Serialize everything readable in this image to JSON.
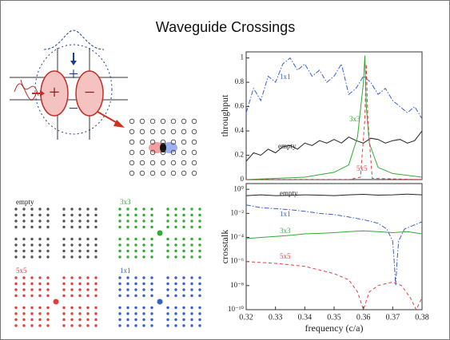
{
  "title": "Waveguide Crossings",
  "diagram": {
    "signs": [
      "+",
      "−",
      "+",
      "−"
    ],
    "lattices": [
      "empty",
      "3x3",
      "5x5",
      "1x1"
    ]
  },
  "chart_data": [
    {
      "type": "line",
      "ylabel": "throughput",
      "xlim": [
        0.32,
        0.38
      ],
      "ylim": [
        0,
        1.05
      ],
      "yticks": [
        0,
        0.2,
        0.4,
        0.6,
        0.8,
        1
      ],
      "log_y": false,
      "series": [
        {
          "name": "1x1",
          "color": "#3a5fcd",
          "dash": "dashdot",
          "x": [
            0.32,
            0.3225,
            0.325,
            0.3275,
            0.33,
            0.3325,
            0.335,
            0.3375,
            0.34,
            0.3425,
            0.345,
            0.3475,
            0.35,
            0.3525,
            0.355,
            0.3575,
            0.36,
            0.3625,
            0.365,
            0.3675,
            0.37,
            0.3725,
            0.375,
            0.3775,
            0.38
          ],
          "values": [
            0.55,
            0.75,
            0.65,
            0.85,
            0.8,
            0.95,
            1.0,
            0.9,
            0.95,
            0.85,
            0.9,
            0.8,
            0.85,
            0.95,
            0.7,
            0.75,
            0.85,
            0.8,
            0.7,
            0.75,
            0.65,
            0.6,
            0.55,
            0.6,
            0.5
          ]
        },
        {
          "name": "empty",
          "color": "#222222",
          "dash": "solid",
          "x": [
            0.32,
            0.3225,
            0.325,
            0.3275,
            0.33,
            0.3325,
            0.335,
            0.3375,
            0.34,
            0.3425,
            0.345,
            0.3475,
            0.35,
            0.3525,
            0.355,
            0.3575,
            0.36,
            0.3625,
            0.365,
            0.3675,
            0.37,
            0.3725,
            0.375,
            0.3775,
            0.38
          ],
          "values": [
            0.15,
            0.22,
            0.2,
            0.25,
            0.22,
            0.27,
            0.28,
            0.25,
            0.3,
            0.28,
            0.32,
            0.3,
            0.33,
            0.3,
            0.35,
            0.32,
            0.3,
            0.34,
            0.33,
            0.3,
            0.32,
            0.33,
            0.3,
            0.32,
            0.4
          ]
        },
        {
          "name": "3x3",
          "color": "#33aa33",
          "dash": "solid",
          "x": [
            0.32,
            0.33,
            0.34,
            0.345,
            0.35,
            0.355,
            0.358,
            0.36,
            0.3605,
            0.361,
            0.362,
            0.365,
            0.37,
            0.38
          ],
          "values": [
            0,
            0.01,
            0.02,
            0.04,
            0.06,
            0.12,
            0.35,
            0.8,
            1.02,
            0.6,
            0.3,
            0.1,
            0.05,
            0.02
          ]
        },
        {
          "name": "5x5",
          "color": "#e04040",
          "dash": "dashed",
          "x": [
            0.32,
            0.355,
            0.359,
            0.3605,
            0.361,
            0.3615,
            0.363,
            0.38
          ],
          "values": [
            0,
            0,
            0.02,
            0.5,
            0.95,
            0.5,
            0.01,
            0
          ]
        }
      ]
    },
    {
      "type": "line",
      "ylabel": "crosstalk",
      "xlabel": "frequency (c/a)",
      "xlim": [
        0.32,
        0.38
      ],
      "ylim": [
        1e-10,
        3
      ],
      "xticks": [
        0.32,
        0.33,
        0.34,
        0.35,
        0.36,
        0.37,
        0.38
      ],
      "log_y": true,
      "yticks": [
        {
          "value": 1,
          "label": "10⁰"
        },
        {
          "value": 0.01,
          "label": "10⁻²"
        },
        {
          "value": 0.0001,
          "label": "10⁻⁴"
        },
        {
          "value": 1e-06,
          "label": "10⁻⁶"
        },
        {
          "value": 1e-08,
          "label": "10⁻⁸"
        },
        {
          "value": 1e-10,
          "label": "10⁻¹⁰"
        }
      ],
      "series": [
        {
          "name": "empty",
          "color": "#222222",
          "dash": "solid",
          "x": [
            0.32,
            0.325,
            0.33,
            0.335,
            0.34,
            0.345,
            0.35,
            0.355,
            0.36,
            0.365,
            0.37,
            0.375,
            0.38
          ],
          "values": [
            0.3,
            0.35,
            0.3,
            0.32,
            0.35,
            0.33,
            0.3,
            0.35,
            0.38,
            0.33,
            0.35,
            0.4,
            0.35
          ]
        },
        {
          "name": "1x1",
          "color": "#3a5fcd",
          "dash": "dashdot",
          "x": [
            0.32,
            0.325,
            0.33,
            0.335,
            0.34,
            0.345,
            0.35,
            0.355,
            0.36,
            0.365,
            0.368,
            0.37,
            0.3705,
            0.371,
            0.3715,
            0.372,
            0.374,
            0.377,
            0.38
          ],
          "values": [
            0.05,
            0.03,
            0.025,
            0.02,
            0.015,
            0.01,
            0.008,
            0.005,
            0.003,
            0.0015,
            0.0005,
            5e-05,
            1e-06,
            1e-08,
            1e-06,
            5e-05,
            0.0005,
            0.001,
            0.002
          ]
        },
        {
          "name": "3x3",
          "color": "#33aa33",
          "dash": "solid",
          "x": [
            0.32,
            0.325,
            0.33,
            0.335,
            0.34,
            0.345,
            0.35,
            0.355,
            0.36,
            0.365,
            0.37,
            0.375,
            0.38
          ],
          "values": [
            8e-05,
            0.0001,
            0.00012,
            0.00015,
            0.0002,
            0.00022,
            0.00025,
            0.0003,
            0.00035,
            0.0003,
            0.00025,
            0.0003,
            0.0002
          ]
        },
        {
          "name": "5x5",
          "color": "#e04040",
          "dash": "dashed",
          "x": [
            0.32,
            0.33,
            0.34,
            0.35,
            0.355,
            0.358,
            0.36,
            0.362,
            0.365,
            0.37,
            0.373,
            0.376,
            0.378,
            0.38
          ],
          "values": [
            1e-06,
            7e-07,
            4e-07,
            1e-07,
            3e-08,
            3e-09,
            1e-10,
            3e-09,
            1e-08,
            2e-08,
            1e-08,
            1e-09,
            1e-10,
            1e-09
          ]
        }
      ]
    }
  ]
}
